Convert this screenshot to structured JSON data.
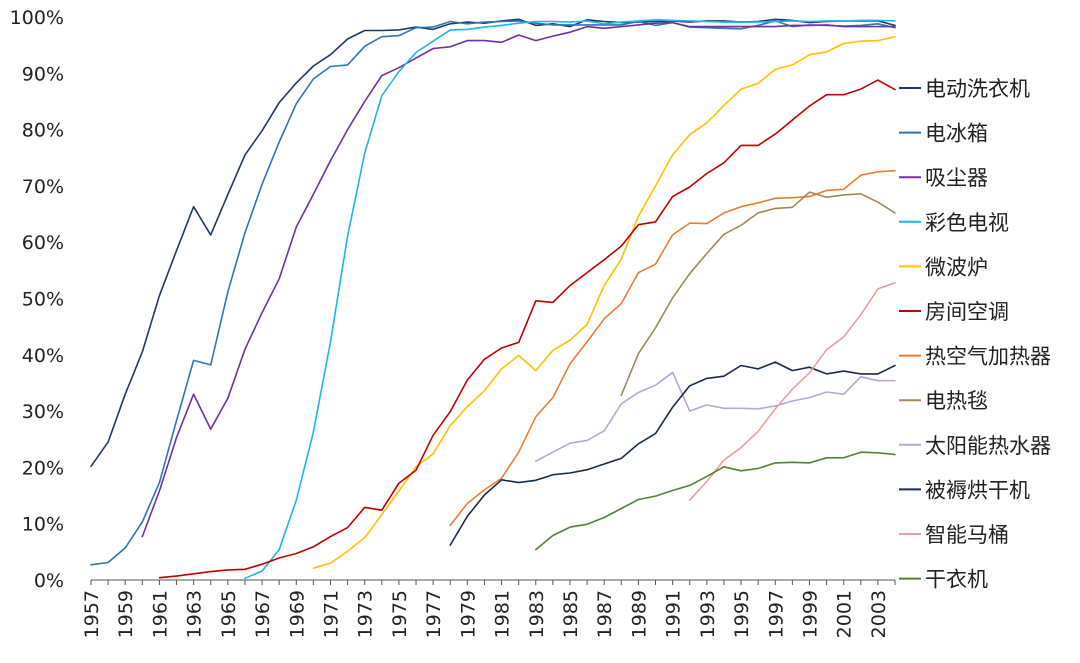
{
  "chart_data": {
    "type": "line",
    "title": "",
    "xlabel": "",
    "ylabel": "",
    "xlim": [
      1957,
      2004
    ],
    "ylim": [
      0,
      100
    ],
    "y_tick_format": "percent",
    "y_ticks": [
      "0%",
      "10%",
      "20%",
      "30%",
      "40%",
      "50%",
      "60%",
      "70%",
      "80%",
      "90%",
      "100%"
    ],
    "x_ticks": [
      "1957",
      "1959",
      "1961",
      "1963",
      "1965",
      "1967",
      "1969",
      "1971",
      "1973",
      "1975",
      "1977",
      "1979",
      "1981",
      "1983",
      "1985",
      "1987",
      "1989",
      "1991",
      "1993",
      "1995",
      "1997",
      "1999",
      "2001",
      "2003"
    ],
    "legend_position": "right",
    "series": [
      {
        "name": "电动洗衣机",
        "color": "#1f3864",
        "x": [
          1957,
          1958,
          1959,
          1960,
          1961,
          1962,
          1963,
          1964,
          1965,
          1966,
          1967,
          1968,
          1969,
          1970,
          1971,
          1972,
          1973,
          1974,
          1975,
          1976,
          1977,
          1978,
          1979,
          1980,
          1981,
          1982,
          1983,
          1984,
          1985,
          1986,
          1987,
          1988,
          1989,
          1990,
          1991,
          1992,
          1993,
          1994,
          1995,
          1996,
          1997,
          1998,
          1999,
          2000,
          2001,
          2002,
          2003,
          2004
        ],
        "y": [
          20.2,
          24.5,
          33,
          40.5,
          50.5,
          58.5,
          66.3,
          61.3,
          68.5,
          75.5,
          79.8,
          84.8,
          88.3,
          91.3,
          93.3,
          96.1,
          97.6,
          97.6,
          97.7,
          98.2,
          97.8,
          98.8,
          99.1,
          98.9,
          99.3,
          99.6,
          98.5,
          98.8,
          98.3,
          99.5,
          99.2,
          99,
          99.1,
          99.2,
          99.3,
          99.1,
          99.3,
          99.3,
          99.1,
          99.2,
          99.6,
          99.4,
          99,
          99.2,
          99.3,
          99.3,
          99.3,
          98.5
        ]
      },
      {
        "name": "电冰箱",
        "color": "#2e75b6",
        "x": [
          1957,
          1958,
          1959,
          1960,
          1961,
          1962,
          1963,
          1964,
          1965,
          1966,
          1967,
          1968,
          1969,
          1970,
          1971,
          1972,
          1973,
          1974,
          1975,
          1976,
          1977,
          1978,
          1979,
          1980,
          1981,
          1982,
          1983,
          1984,
          1985,
          1986,
          1987,
          1988,
          1989,
          1990,
          1991,
          1992,
          1993,
          1994,
          1995,
          1996,
          1997,
          1998,
          1999,
          2000,
          2001,
          2002,
          2003,
          2004
        ],
        "y": [
          2.7,
          3.1,
          5.7,
          10.3,
          17.3,
          28.3,
          39,
          38.2,
          51.2,
          61.7,
          70.3,
          77.8,
          84.6,
          89,
          91.2,
          91.5,
          94.8,
          96.5,
          96.7,
          98.1,
          98.2,
          99.2,
          98.8,
          99.1,
          99.2,
          99.3,
          98.9,
          98.6,
          98.6,
          98.6,
          98.6,
          98.6,
          99.2,
          98.5,
          99,
          98.2,
          98.1,
          98,
          97.9,
          98.5,
          99.3,
          98.3,
          98.6,
          98.5,
          98.4,
          98.5,
          98.8,
          98.1
        ]
      },
      {
        "name": "吸尘器",
        "color": "#7030a0",
        "x": [
          1960,
          1961,
          1962,
          1963,
          1964,
          1965,
          1966,
          1967,
          1968,
          1969,
          1970,
          1971,
          1972,
          1973,
          1974,
          1975,
          1976,
          1977,
          1978,
          1979,
          1980,
          1981,
          1982,
          1983,
          1984,
          1985,
          1986,
          1987,
          1988,
          1989,
          1990,
          1991,
          1992,
          1993,
          1994,
          1995,
          1996,
          1997,
          1998,
          1999,
          2000,
          2001,
          2002,
          2003,
          2004
        ],
        "y": [
          7.7,
          15.8,
          25.3,
          33,
          26.8,
          32.3,
          41,
          47.5,
          53.5,
          62.7,
          68.5,
          74.5,
          80,
          85,
          89.6,
          91,
          92.7,
          94.4,
          94.7,
          95.8,
          95.8,
          95.5,
          96.8,
          95.8,
          96.6,
          97.3,
          98.3,
          98,
          98.3,
          98.6,
          98.9,
          99,
          98.3,
          98.3,
          98.3,
          98.3,
          98.3,
          98.3,
          98.5,
          98.5,
          98.6,
          98.3,
          98.3,
          98.3,
          98.3
        ]
      },
      {
        "name": "彩色电视",
        "color": "#1eb4ea",
        "x": [
          1966,
          1967,
          1968,
          1969,
          1970,
          1971,
          1972,
          1973,
          1974,
          1975,
          1976,
          1977,
          1978,
          1979,
          1980,
          1981,
          1982,
          1983,
          1984,
          1985,
          1986,
          1987,
          1988,
          1989,
          1990,
          1991,
          1992,
          1993,
          1994,
          1995,
          1996,
          1997,
          1998,
          1999,
          2000,
          2001,
          2002,
          2003,
          2004
        ],
        "y": [
          0.3,
          1.6,
          5.4,
          14.2,
          26.3,
          42.3,
          61.1,
          75.8,
          86,
          90.3,
          93.7,
          95.7,
          97.7,
          97.8,
          98.2,
          98.5,
          98.9,
          99.2,
          99.2,
          99.1,
          99.3,
          98.8,
          99.1,
          99.3,
          99.5,
          99.4,
          99.3,
          99.2,
          99.1,
          99.1,
          99.1,
          99.2,
          99.3,
          99.2,
          99.3,
          99.3,
          99.4,
          99.4,
          99.3
        ]
      },
      {
        "name": "微波炉",
        "color": "#ffc000",
        "x": [
          1970,
          1971,
          1972,
          1973,
          1974,
          1975,
          1976,
          1977,
          1978,
          1979,
          1980,
          1981,
          1982,
          1983,
          1984,
          1985,
          1986,
          1987,
          1988,
          1989,
          1990,
          1991,
          1992,
          1993,
          1994,
          1995,
          1996,
          1997,
          1998,
          1999,
          2000,
          2001,
          2002,
          2003,
          2004
        ],
        "y": [
          2.1,
          3,
          5.1,
          7.5,
          11.6,
          15.8,
          20.1,
          22.4,
          27.4,
          30.8,
          33.6,
          37.5,
          39.9,
          37.2,
          40.8,
          42.6,
          45.4,
          52.3,
          57,
          64.6,
          70,
          75.5,
          79.1,
          81.2,
          84.3,
          87.2,
          88.2,
          90.7,
          91.5,
          93.3,
          93.8,
          95.3,
          95.7,
          95.8,
          96.5
        ]
      },
      {
        "name": "房间空调",
        "color": "#c00000",
        "x": [
          1961,
          1962,
          1963,
          1964,
          1965,
          1966,
          1967,
          1968,
          1969,
          1970,
          1971,
          1972,
          1973,
          1974,
          1975,
          1976,
          1977,
          1978,
          1979,
          1980,
          1981,
          1982,
          1983,
          1984,
          1985,
          1986,
          1987,
          1988,
          1989,
          1990,
          1991,
          1992,
          1993,
          1994,
          1995,
          1996,
          1997,
          1998,
          1999,
          2000,
          2001,
          2002,
          2003,
          2004
        ],
        "y": [
          0.4,
          0.7,
          1.1,
          1.5,
          1.8,
          1.9,
          2.8,
          3.9,
          4.7,
          5.9,
          7.7,
          9.3,
          12.9,
          12.4,
          17.2,
          19.5,
          25.7,
          29.9,
          35.5,
          39.2,
          41.2,
          42.2,
          49.6,
          49.3,
          52.3,
          54.6,
          56.9,
          59.3,
          63.1,
          63.6,
          68.1,
          69.8,
          72.2,
          74.1,
          77.2,
          77.2,
          79.2,
          81.7,
          84.2,
          86.2,
          86.2,
          87.2,
          88.8,
          87.1
        ]
      },
      {
        "name": "热空气加热器",
        "color": "#ed7d31",
        "x": [
          1978,
          1979,
          1980,
          1981,
          1982,
          1983,
          1984,
          1985,
          1986,
          1987,
          1988,
          1989,
          1990,
          1991,
          1992,
          1993,
          1994,
          1995,
          1996,
          1997,
          1998,
          1999,
          2000,
          2001,
          2002,
          2003,
          2004
        ],
        "y": [
          9.7,
          13.6,
          16,
          18.1,
          22.7,
          29,
          32.4,
          38.4,
          42.3,
          46.4,
          49.1,
          54.6,
          56.1,
          61.3,
          63.4,
          63.3,
          65.2,
          66.3,
          67,
          67.8,
          67.9,
          68.1,
          69.2,
          69.4,
          71.9,
          72.5,
          72.7
        ]
      },
      {
        "name": "电热毯",
        "color": "#9e8a5a",
        "x": [
          1988,
          1989,
          1990,
          1991,
          1992,
          1993,
          1994,
          1995,
          1996,
          1997,
          1998,
          1999,
          2000,
          2001,
          2002,
          2003,
          2004
        ],
        "y": [
          32.8,
          40.2,
          44.8,
          50.1,
          54.4,
          58,
          61.4,
          63,
          65.2,
          66,
          66.2,
          68.9,
          68,
          68.4,
          68.6,
          67.1,
          65.2
        ]
      },
      {
        "name": "太阳能热水器",
        "color": "#b4a7d6",
        "x": [
          1983,
          1984,
          1985,
          1986,
          1987,
          1988,
          1989,
          1990,
          1991,
          1992,
          1993,
          1994,
          1995,
          1996,
          1997,
          1998,
          1999,
          2000,
          2001,
          2002,
          2003,
          2004
        ],
        "y": [
          21.1,
          22.7,
          24.3,
          24.8,
          26.5,
          31.3,
          33.3,
          34.6,
          36.9,
          30,
          31.1,
          30.5,
          30.5,
          30.4,
          30.9,
          31.8,
          32.4,
          33.4,
          33,
          36.1,
          35.4,
          35.4
        ]
      },
      {
        "name": "被褥烘干机",
        "color": "#172b4d",
        "x": [
          1978,
          1979,
          1980,
          1981,
          1982,
          1983,
          1984,
          1985,
          1986,
          1987,
          1988,
          1989,
          1990,
          1991,
          1992,
          1993,
          1994,
          1995,
          1996,
          1997,
          1998,
          1999,
          2000,
          2001,
          2002,
          2003,
          2004
        ],
        "y": [
          6.2,
          11.3,
          15.1,
          17.8,
          17.3,
          17.7,
          18.7,
          19,
          19.6,
          20.6,
          21.6,
          24.2,
          26,
          30.7,
          34.5,
          35.8,
          36.2,
          38.1,
          37.5,
          38.7,
          37.2,
          37.8,
          36.6,
          37.1,
          36.6,
          36.6,
          38.1
        ]
      },
      {
        "name": "智能马桶",
        "color": "#e6a19f",
        "x": [
          1992,
          1993,
          1994,
          1995,
          1996,
          1997,
          1998,
          1999,
          2000,
          2001,
          2002,
          2003,
          2004
        ],
        "y": [
          14.2,
          17.5,
          21.3,
          23.5,
          26.4,
          30.4,
          33.9,
          36.8,
          40.9,
          43.2,
          47.1,
          51.7,
          52.8
        ]
      },
      {
        "name": "干衣机",
        "color": "#548235",
        "x": [
          1983,
          1984,
          1985,
          1986,
          1987,
          1988,
          1989,
          1990,
          1991,
          1992,
          1993,
          1994,
          1995,
          1996,
          1997,
          1998,
          1999,
          2000,
          2001,
          2002,
          2003,
          2004
        ],
        "y": [
          5.4,
          7.9,
          9.4,
          9.9,
          11.1,
          12.7,
          14.3,
          14.9,
          15.9,
          16.8,
          18.4,
          20.1,
          19.4,
          19.8,
          20.8,
          20.9,
          20.8,
          21.7,
          21.7,
          22.7,
          22.6,
          22.3
        ]
      }
    ]
  }
}
